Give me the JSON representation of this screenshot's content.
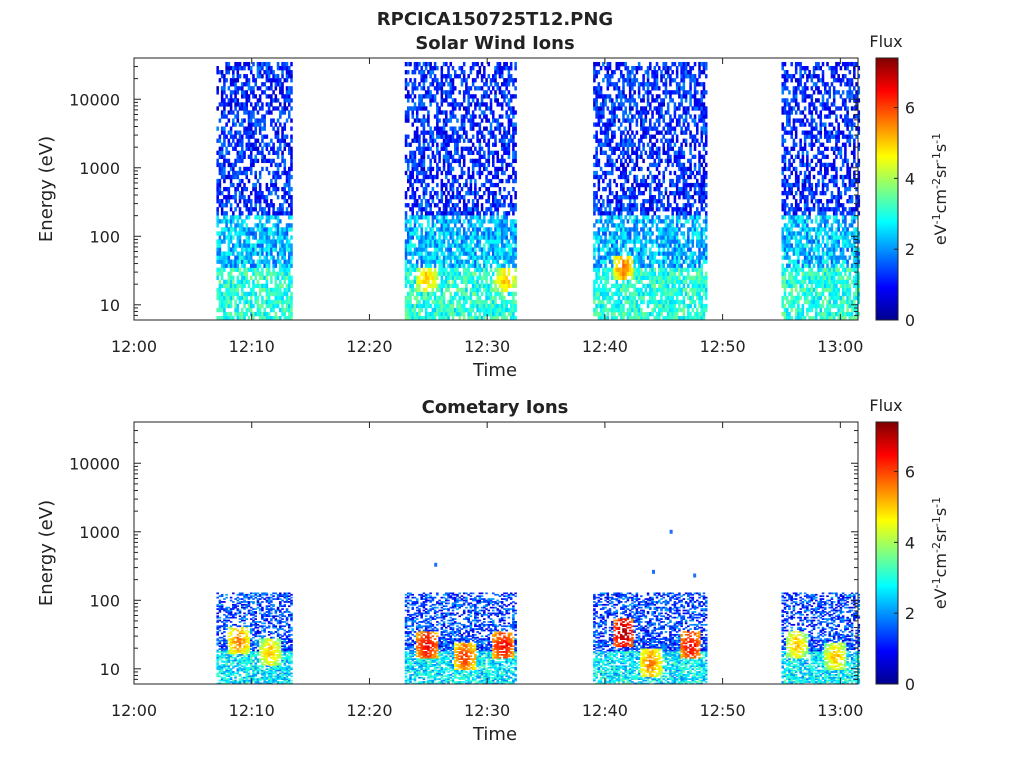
{
  "figure_title": "RPCICA150725T12.PNG",
  "chart_data": [
    {
      "type": "heatmap",
      "title": "Solar Wind Ions",
      "xlabel": "Time",
      "ylabel": "Energy (eV)",
      "x_tick_labels": [
        "12:00",
        "12:10",
        "12:20",
        "12:30",
        "12:40",
        "12:50",
        "13:00"
      ],
      "x_ticks_min": [
        0,
        10,
        20,
        30,
        40,
        50,
        60
      ],
      "xlim_min": [
        0,
        61.5
      ],
      "y_scale": "log",
      "y_tick_labels": [
        "10",
        "100",
        "1000",
        "10000"
      ],
      "y_ticks": [
        10,
        100,
        1000,
        10000
      ],
      "ylim": [
        6,
        40000
      ],
      "colorbar": {
        "title": "Flux",
        "label": "eV-1cm-2sr-1s-1",
        "ticks": [
          "0",
          "2",
          "4",
          "6"
        ],
        "range": [
          0,
          7.4
        ],
        "colormap": "jet"
      },
      "data_intervals_min": [
        [
          7,
          13.3
        ],
        [
          23,
          32.5
        ],
        [
          39,
          48.5
        ],
        [
          55,
          61.5
        ]
      ],
      "energy_range_eV": [
        6,
        35000
      ],
      "dominant_flux_high_energy": 1,
      "dominant_flux_100eV": 3,
      "dominant_flux_low_energy": 3.5,
      "peak_patches": [
        {
          "t_min": 24.8,
          "energy_eV": 22,
          "flux": 5
        },
        {
          "t_min": 31.5,
          "energy_eV": 22,
          "flux": 5
        },
        {
          "t_min": 41.5,
          "energy_eV": 33,
          "flux": 5.5
        }
      ]
    },
    {
      "type": "heatmap",
      "title": "Cometary Ions",
      "xlabel": "Time",
      "ylabel": "Energy (eV)",
      "x_tick_labels": [
        "12:00",
        "12:10",
        "12:20",
        "12:30",
        "12:40",
        "12:50",
        "13:00"
      ],
      "x_ticks_min": [
        0,
        10,
        20,
        30,
        40,
        50,
        60
      ],
      "xlim_min": [
        0,
        61.5
      ],
      "y_scale": "log",
      "y_tick_labels": [
        "10",
        "100",
        "1000",
        "10000"
      ],
      "y_ticks": [
        10,
        100,
        1000,
        10000
      ],
      "ylim": [
        6,
        40000
      ],
      "colorbar": {
        "title": "Flux",
        "label": "eV-1cm-2sr-1s-1",
        "ticks": [
          "0",
          "2",
          "4",
          "6"
        ],
        "range": [
          0,
          7.4
        ],
        "colormap": "jet"
      },
      "data_intervals_min": [
        [
          7,
          13.3
        ],
        [
          23,
          32.5
        ],
        [
          39,
          48.5
        ],
        [
          55,
          61.5
        ]
      ],
      "energy_range_eV": [
        6,
        130
      ],
      "peak_patches": [
        {
          "t_min": 8.8,
          "energy_eV": 25,
          "flux": 5.5
        },
        {
          "t_min": 11.5,
          "energy_eV": 17,
          "flux": 5
        },
        {
          "t_min": 24.8,
          "energy_eV": 22,
          "flux": 6.5
        },
        {
          "t_min": 28,
          "energy_eV": 15,
          "flux": 6
        },
        {
          "t_min": 31.3,
          "energy_eV": 22,
          "flux": 6.5
        },
        {
          "t_min": 41.5,
          "energy_eV": 33,
          "flux": 7
        },
        {
          "t_min": 47.2,
          "energy_eV": 22,
          "flux": 6.5
        },
        {
          "t_min": 43.8,
          "energy_eV": 12,
          "flux": 5.5
        },
        {
          "t_min": 56.2,
          "energy_eV": 22,
          "flux": 5
        },
        {
          "t_min": 59.5,
          "energy_eV": 15,
          "flux": 5
        }
      ],
      "isolated_points": [
        {
          "t_min": 45.5,
          "energy_eV": 1000
        },
        {
          "t_min": 25.5,
          "energy_eV": 330
        },
        {
          "t_min": 44,
          "energy_eV": 260
        },
        {
          "t_min": 47.5,
          "energy_eV": 230
        }
      ]
    }
  ]
}
